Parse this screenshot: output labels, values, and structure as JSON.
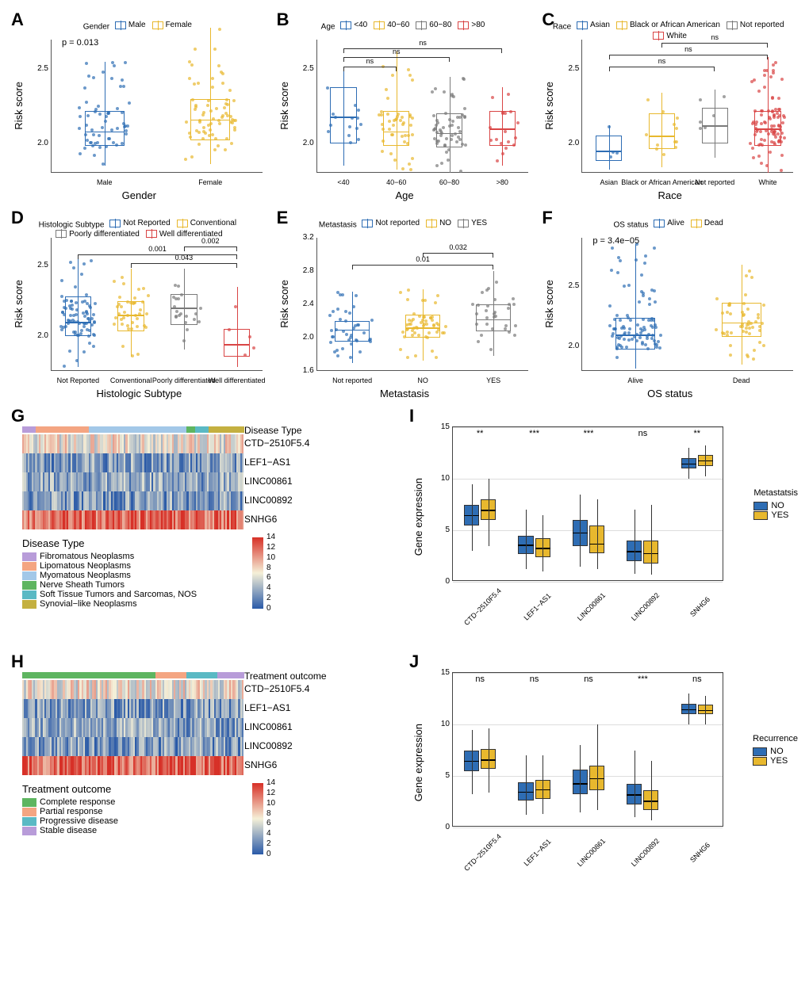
{
  "colors": {
    "blue": "#2e6db4",
    "yellow": "#e8b82e",
    "gray": "#7a7a7a",
    "red": "#d94545",
    "hm_low": "#2a5aa8",
    "hm_mid": "#f5f0d8",
    "hm_high": "#d73027",
    "purple": "#b89cd9",
    "salmon": "#f4a582",
    "lightblue": "#a3c8e8",
    "green": "#5eb560",
    "teal": "#5ab9c4",
    "olive": "#c4b040"
  },
  "panelA": {
    "label": "A",
    "legend_title": "Gender",
    "legend": [
      {
        "label": "Male",
        "color": "blue"
      },
      {
        "label": "Female",
        "color": "yellow"
      }
    ],
    "ylabel": "Risk score",
    "xlabel": "Gender",
    "pvalue": "p = 0.013",
    "ylim": [
      1.8,
      2.7
    ],
    "yticks": [
      2.0,
      2.5
    ],
    "categories": [
      "Male",
      "Female"
    ],
    "boxes": [
      {
        "q1": 1.98,
        "med": 2.08,
        "q3": 2.22,
        "lo": 1.85,
        "hi": 2.55,
        "color": "blue",
        "n": 60
      },
      {
        "q1": 2.02,
        "med": 2.16,
        "q3": 2.3,
        "lo": 1.86,
        "hi": 2.78,
        "color": "yellow",
        "n": 70
      }
    ]
  },
  "panelB": {
    "label": "B",
    "legend_title": "Age",
    "legend": [
      {
        "label": "<40",
        "color": "blue"
      },
      {
        "label": "40−60",
        "color": "yellow"
      },
      {
        "label": "60−80",
        "color": "gray"
      },
      {
        "label": ">80",
        "color": "red"
      }
    ],
    "ylabel": "Risk score",
    "xlabel": "Age",
    "ylim": [
      1.8,
      2.7
    ],
    "yticks": [
      2.0,
      2.5
    ],
    "categories": [
      "<40",
      "40−60",
      "60−80",
      ">80"
    ],
    "brackets": [
      {
        "from": 0,
        "to": 1,
        "y": 2.52,
        "label": "ns"
      },
      {
        "from": 0,
        "to": 2,
        "y": 2.58,
        "label": "ns"
      },
      {
        "from": 0,
        "to": 3,
        "y": 2.64,
        "label": "ns"
      }
    ],
    "boxes": [
      {
        "q1": 2.0,
        "med": 2.18,
        "q3": 2.38,
        "lo": 1.85,
        "hi": 2.5,
        "color": "blue",
        "n": 15
      },
      {
        "q1": 1.98,
        "med": 2.08,
        "q3": 2.22,
        "lo": 1.82,
        "hi": 2.62,
        "color": "yellow",
        "n": 45
      },
      {
        "q1": 1.97,
        "med": 2.07,
        "q3": 2.2,
        "lo": 1.8,
        "hi": 2.45,
        "color": "gray",
        "n": 55
      },
      {
        "q1": 1.98,
        "med": 2.1,
        "q3": 2.22,
        "lo": 1.85,
        "hi": 2.38,
        "color": "red",
        "n": 18
      }
    ]
  },
  "panelC": {
    "label": "C",
    "legend_title": "Race",
    "legend": [
      {
        "label": "Asian",
        "color": "blue"
      },
      {
        "label": "Black or African American",
        "color": "yellow"
      },
      {
        "label": "Not reported",
        "color": "gray"
      },
      {
        "label": "White",
        "color": "red"
      }
    ],
    "ylabel": "Risk score",
    "xlabel": "Race",
    "ylim": [
      1.8,
      2.7
    ],
    "yticks": [
      2.0,
      2.5
    ],
    "categories": [
      "Asian",
      "Black or African American",
      "Not reported",
      "White"
    ],
    "brackets": [
      {
        "from": 0,
        "to": 2,
        "y": 2.52,
        "label": "ns"
      },
      {
        "from": 0,
        "to": 3,
        "y": 2.6,
        "label": "ns"
      },
      {
        "from": 1,
        "to": 3,
        "y": 2.68,
        "label": "ns"
      }
    ],
    "boxes": [
      {
        "q1": 1.88,
        "med": 1.95,
        "q3": 2.05,
        "lo": 1.82,
        "hi": 2.12,
        "color": "blue",
        "n": 4
      },
      {
        "q1": 1.96,
        "med": 2.05,
        "q3": 2.2,
        "lo": 1.84,
        "hi": 2.34,
        "color": "yellow",
        "n": 12
      },
      {
        "q1": 2.0,
        "med": 2.12,
        "q3": 2.24,
        "lo": 1.9,
        "hi": 2.36,
        "color": "gray",
        "n": 6
      },
      {
        "q1": 1.98,
        "med": 2.1,
        "q3": 2.22,
        "lo": 1.8,
        "hi": 2.58,
        "color": "red",
        "n": 110
      }
    ]
  },
  "panelD": {
    "label": "D",
    "legend_title": "Histologic Subtype",
    "legend": [
      {
        "label": "Not Reported",
        "color": "blue"
      },
      {
        "label": "Conventional",
        "color": "yellow"
      },
      {
        "label": "Poorly differentiated",
        "color": "gray"
      },
      {
        "label": "Well differentiated",
        "color": "red"
      }
    ],
    "ylabel": "Risk score",
    "xlabel": "Histologic Subtype",
    "ylim": [
      1.75,
      2.7
    ],
    "yticks": [
      2.0,
      2.5
    ],
    "categories": [
      "Not Reported",
      "Conventional",
      "Poorly differentiated",
      "Well differentiated"
    ],
    "brackets": [
      {
        "from": 1,
        "to": 3,
        "y": 2.52,
        "label": "0.043"
      },
      {
        "from": 0,
        "to": 3,
        "y": 2.58,
        "label": "0.001"
      },
      {
        "from": 2,
        "to": 3,
        "y": 2.64,
        "label": "0.002"
      }
    ],
    "boxes": [
      {
        "q1": 2.0,
        "med": 2.1,
        "q3": 2.28,
        "lo": 1.78,
        "hi": 2.55,
        "color": "blue",
        "n": 80
      },
      {
        "q1": 2.03,
        "med": 2.15,
        "q3": 2.25,
        "lo": 1.85,
        "hi": 2.48,
        "color": "yellow",
        "n": 40
      },
      {
        "q1": 2.08,
        "med": 2.2,
        "q3": 2.3,
        "lo": 1.9,
        "hi": 2.48,
        "color": "gray",
        "n": 20
      },
      {
        "q1": 1.85,
        "med": 1.94,
        "q3": 2.05,
        "lo": 1.78,
        "hi": 2.35,
        "color": "red",
        "n": 5
      }
    ]
  },
  "panelE": {
    "label": "E",
    "legend_title": "Metastasis",
    "legend": [
      {
        "label": "Not reported",
        "color": "blue"
      },
      {
        "label": "NO",
        "color": "yellow"
      },
      {
        "label": "YES",
        "color": "gray"
      }
    ],
    "ylabel": "Risk score",
    "xlabel": "Metastasis",
    "ylim": [
      1.6,
      3.2
    ],
    "yticks": [
      1.6,
      2.0,
      2.4,
      2.8,
      3.2
    ],
    "categories": [
      "Not reported",
      "NO",
      "YES"
    ],
    "brackets": [
      {
        "from": 0,
        "to": 2,
        "y": 2.88,
        "label": "0.01"
      },
      {
        "from": 1,
        "to": 2,
        "y": 3.02,
        "label": "0.032"
      }
    ],
    "boxes": [
      {
        "q1": 1.95,
        "med": 2.1,
        "q3": 2.2,
        "lo": 1.7,
        "hi": 2.55,
        "color": "blue",
        "n": 40
      },
      {
        "q1": 2.0,
        "med": 2.12,
        "q3": 2.28,
        "lo": 1.72,
        "hi": 2.58,
        "color": "yellow",
        "n": 55
      },
      {
        "q1": 2.08,
        "med": 2.22,
        "q3": 2.4,
        "lo": 1.78,
        "hi": 2.8,
        "color": "gray",
        "n": 30
      }
    ]
  },
  "panelF": {
    "label": "F",
    "legend_title": "OS status",
    "legend": [
      {
        "label": "Alive",
        "color": "blue"
      },
      {
        "label": "Dead",
        "color": "yellow"
      }
    ],
    "ylabel": "Risk score",
    "xlabel": "OS status",
    "pvalue": "p = 3.4e−05",
    "ylim": [
      1.8,
      2.9
    ],
    "yticks": [
      2.0,
      2.5
    ],
    "categories": [
      "Alive",
      "Dead"
    ],
    "boxes": [
      {
        "q1": 1.98,
        "med": 2.1,
        "q3": 2.24,
        "lo": 1.82,
        "hi": 2.85,
        "color": "blue",
        "n": 90
      },
      {
        "q1": 2.08,
        "med": 2.2,
        "q3": 2.36,
        "lo": 1.85,
        "hi": 2.68,
        "color": "yellow",
        "n": 50
      }
    ]
  },
  "panelG": {
    "label": "G",
    "rows": [
      "CTD−2510F5.4",
      "LEF1−AS1",
      "LINC00861",
      "LINC00892",
      "SNHG6"
    ],
    "topbar_label": "Disease Type",
    "topbar_segments": [
      {
        "color": "purple",
        "frac": 0.06
      },
      {
        "color": "salmon",
        "frac": 0.24
      },
      {
        "color": "lightblue",
        "frac": 0.44
      },
      {
        "color": "green",
        "frac": 0.04
      },
      {
        "color": "teal",
        "frac": 0.06
      },
      {
        "color": "olive",
        "frac": 0.16
      }
    ],
    "legend_title": "Disease Type",
    "legend": [
      {
        "label": "Fibromatous Neoplasms",
        "color": "purple"
      },
      {
        "label": "Lipomatous Neoplasms",
        "color": "salmon"
      },
      {
        "label": "Myomatous Neoplasms",
        "color": "lightblue"
      },
      {
        "label": "Nerve Sheath Tumors",
        "color": "green"
      },
      {
        "label": "Soft Tissue Tumors and Sarcomas, NOS",
        "color": "teal"
      },
      {
        "label": "Synovial−like Neoplasms",
        "color": "olive"
      }
    ],
    "colorbar": {
      "min": 0,
      "max": 14,
      "ticks": [
        0,
        2,
        4,
        6,
        8,
        10,
        12,
        14
      ]
    },
    "row_means": [
      7,
      3,
      3.5,
      3,
      12
    ]
  },
  "panelH": {
    "label": "H",
    "rows": [
      "CTD−2510F5.4",
      "LEF1−AS1",
      "LINC00861",
      "LINC00892",
      "SNHG6"
    ],
    "topbar_label": "Treatment outcome",
    "topbar_segments": [
      {
        "color": "green",
        "frac": 0.6
      },
      {
        "color": "salmon",
        "frac": 0.14
      },
      {
        "color": "teal",
        "frac": 0.14
      },
      {
        "color": "purple",
        "frac": 0.12
      }
    ],
    "legend_title": "Treatment outcome",
    "legend": [
      {
        "label": "Complete response",
        "color": "green"
      },
      {
        "label": "Partial response",
        "color": "salmon"
      },
      {
        "label": "Progressive  disease",
        "color": "teal"
      },
      {
        "label": "Stable disease",
        "color": "purple"
      }
    ],
    "colorbar": {
      "min": 0,
      "max": 14,
      "ticks": [
        0,
        2,
        4,
        6,
        8,
        10,
        12,
        14
      ]
    },
    "row_means": [
      7,
      3,
      3.5,
      3,
      12
    ]
  },
  "panelI": {
    "label": "I",
    "ylabel": "Gene expression",
    "ylim": [
      0,
      15
    ],
    "yticks": [
      0,
      5,
      10,
      15
    ],
    "genes": [
      "CTD−2510F5.4",
      "LEF1−AS1",
      "LINC00861",
      "LINC00892",
      "SNHG6"
    ],
    "sig": [
      "**",
      "***",
      "***",
      "ns",
      "**"
    ],
    "legend_title": "Metastatsis",
    "legend": [
      {
        "label": "NO",
        "color": "blue"
      },
      {
        "label": "YES",
        "color": "yellow"
      }
    ],
    "pairs": [
      {
        "no": {
          "q1": 5.5,
          "med": 6.5,
          "q3": 7.5,
          "lo": 3.0,
          "hi": 9.5
        },
        "yes": {
          "q1": 6.0,
          "med": 7.0,
          "q3": 8.0,
          "lo": 3.5,
          "hi": 10.0
        }
      },
      {
        "no": {
          "q1": 2.7,
          "med": 3.6,
          "q3": 4.5,
          "lo": 1.2,
          "hi": 7.0
        },
        "yes": {
          "q1": 2.4,
          "med": 3.3,
          "q3": 4.2,
          "lo": 1.0,
          "hi": 6.5
        }
      },
      {
        "no": {
          "q1": 3.5,
          "med": 4.8,
          "q3": 6.0,
          "lo": 1.5,
          "hi": 8.5
        },
        "yes": {
          "q1": 2.8,
          "med": 3.7,
          "q3": 5.5,
          "lo": 1.2,
          "hi": 8.0
        }
      },
      {
        "no": {
          "q1": 2.0,
          "med": 3.0,
          "q3": 4.0,
          "lo": 0.8,
          "hi": 7.0
        },
        "yes": {
          "q1": 1.8,
          "med": 2.8,
          "q3": 4.0,
          "lo": 0.7,
          "hi": 7.5
        }
      },
      {
        "no": {
          "q1": 11.0,
          "med": 11.5,
          "q3": 12.0,
          "lo": 10.0,
          "hi": 13.0
        },
        "yes": {
          "q1": 11.2,
          "med": 11.8,
          "q3": 12.3,
          "lo": 10.2,
          "hi": 13.2
        }
      }
    ]
  },
  "panelJ": {
    "label": "J",
    "ylabel": "Gene expression",
    "ylim": [
      0,
      15
    ],
    "yticks": [
      0,
      5,
      10,
      15
    ],
    "genes": [
      "CTD−2510F5.4",
      "LEF1−AS1",
      "LINC00861",
      "LINC00892",
      "SNHG6"
    ],
    "sig": [
      "ns",
      "ns",
      "ns",
      "***",
      "ns"
    ],
    "legend_title": "Recurrence",
    "legend": [
      {
        "label": "NO",
        "color": "blue"
      },
      {
        "label": "YES",
        "color": "yellow"
      }
    ],
    "pairs": [
      {
        "no": {
          "q1": 5.5,
          "med": 6.5,
          "q3": 7.5,
          "lo": 3.2,
          "hi": 9.5
        },
        "yes": {
          "q1": 5.7,
          "med": 6.6,
          "q3": 7.6,
          "lo": 3.4,
          "hi": 9.6
        }
      },
      {
        "no": {
          "q1": 2.6,
          "med": 3.5,
          "q3": 4.4,
          "lo": 1.2,
          "hi": 7.0
        },
        "yes": {
          "q1": 2.8,
          "med": 3.7,
          "q3": 4.6,
          "lo": 1.3,
          "hi": 7.0
        }
      },
      {
        "no": {
          "q1": 3.2,
          "med": 4.3,
          "q3": 5.6,
          "lo": 1.5,
          "hi": 8.0
        },
        "yes": {
          "q1": 3.6,
          "med": 4.8,
          "q3": 6.0,
          "lo": 1.7,
          "hi": 10.0
        }
      },
      {
        "no": {
          "q1": 2.2,
          "med": 3.2,
          "q3": 4.2,
          "lo": 1.0,
          "hi": 7.5
        },
        "yes": {
          "q1": 1.7,
          "med": 2.6,
          "q3": 3.6,
          "lo": 0.7,
          "hi": 6.5
        }
      },
      {
        "no": {
          "q1": 11.0,
          "med": 11.5,
          "q3": 12.0,
          "lo": 10.0,
          "hi": 13.0
        },
        "yes": {
          "q1": 11.0,
          "med": 11.4,
          "q3": 11.9,
          "lo": 10.0,
          "hi": 12.8
        }
      }
    ]
  }
}
